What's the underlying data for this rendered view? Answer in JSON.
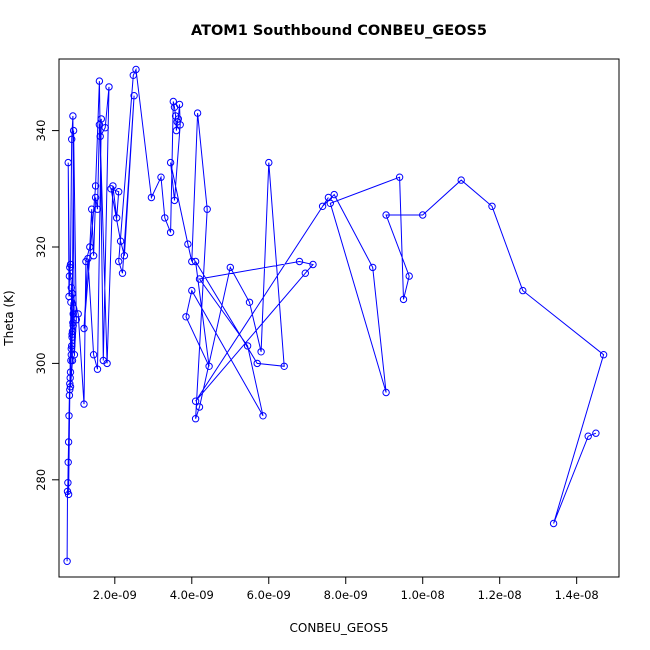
{
  "chart_data": {
    "type": "line",
    "title": "ATOM1 Southbound CONBEU_GEOS5",
    "xlabel": "CONBEU_GEOS5",
    "ylabel": "Theta (K)",
    "xlim": [
      5.5e-10,
      1.51e-08
    ],
    "ylim": [
      263.3,
      352.3
    ],
    "x_ticks": [
      2e-09,
      4e-09,
      6e-09,
      8e-09,
      1e-08,
      1.2e-08,
      1.4e-08
    ],
    "x_tick_labels": [
      "2.0e-09",
      "4.0e-09",
      "6.0e-09",
      "8.0e-09",
      "1.0e-08",
      "1.2e-08",
      "1.4e-08"
    ],
    "y_ticks": [
      280,
      300,
      320,
      340
    ],
    "y_tick_labels": [
      "280",
      "300",
      "320",
      "340"
    ],
    "grid": false,
    "legend": "none",
    "marker": "open-circle",
    "series": [
      {
        "color": "#0000ff",
        "x": [
          7.6e-10,
          7.7e-10,
          7.8e-10,
          7.9e-10,
          8e-10,
          8.1e-10,
          8.2e-10,
          8.3e-10,
          8.4e-10,
          8.5e-10,
          8.6e-10,
          8.7e-10,
          8.8e-10,
          8.9e-10,
          9e-10,
          9.1e-10,
          9.2e-10,
          9.3e-10,
          8.3e-10,
          8.1e-10,
          7.9e-10,
          8.2e-10,
          8.5e-10,
          8.8e-10,
          9.1e-10,
          9.5e-10,
          1e-09,
          9.3e-10,
          8.9e-10,
          8.6e-10,
          8e-10,
          8.3e-10,
          8.7e-10,
          9.2e-10,
          8.7e-10,
          9e-10,
          8.5e-10,
          9e-10,
          1.05e-09,
          1.2e-09,
          1.25e-09,
          1.35e-09,
          1.4e-09,
          1.45e-09,
          1.5e-09,
          1.55e-09,
          1.6e-09,
          1.65e-09,
          1.55e-09,
          1.45e-09,
          1.3e-09,
          1.2e-09,
          1.5e-09,
          1.6e-09,
          1.7e-09,
          1.85e-09,
          1.75e-09,
          1.62e-09,
          1.8e-09,
          1.95e-09,
          2.05e-09,
          2.1e-09,
          1.9e-09,
          2.15e-09,
          2.25e-09,
          2.5e-09,
          2.2e-09,
          2.1e-09,
          2.48e-09,
          2.55e-09,
          2.95e-09,
          3.2e-09,
          3.3e-09,
          3.45e-09,
          3.52e-09,
          3.55e-09,
          3.58e-09,
          3.6e-09,
          3.62e-09,
          3.65e-09,
          3.68e-09,
          3.7e-09,
          3.55e-09,
          3.45e-09,
          3.9e-09,
          4e-09,
          4.15e-09,
          4.4e-09,
          4.1e-09,
          4.2e-09,
          5e-09,
          5.5e-09,
          5.8e-09,
          6e-09,
          6.4e-09,
          5.7e-09,
          4.1e-09,
          4.45e-09,
          3.85e-09,
          4e-09,
          5.85e-09,
          5.45e-09,
          4.2e-09,
          6.8e-09,
          7.15e-09,
          6.95e-09,
          4.1e-09,
          7.55e-09,
          7.4e-09,
          7.7e-09,
          8.7e-09,
          9.05e-09,
          7.6e-09,
          9.4e-09,
          9.5e-09,
          9.65e-09,
          9.05e-09,
          1e-08,
          1.1e-08,
          1.18e-08,
          1.26e-08,
          1.47e-08,
          1.34e-08,
          1.43e-08,
          1.45e-08
        ],
        "y": [
          266.0,
          278.0,
          279.5,
          283.0,
          286.5,
          291.0,
          294.5,
          296.5,
          297.5,
          298.5,
          300.5,
          301.5,
          303.0,
          304.5,
          305.5,
          307.0,
          308.5,
          309.5,
          316.5,
          311.5,
          334.5,
          315.0,
          317.0,
          338.5,
          342.5,
          301.5,
          307.5,
          340.0,
          305.0,
          310.5,
          277.5,
          295.5,
          302.5,
          306.5,
          313.0,
          300.5,
          296.0,
          312.0,
          308.5,
          293.0,
          317.5,
          320.0,
          326.5,
          318.5,
          328.5,
          326.5,
          341.0,
          342.0,
          299.0,
          301.5,
          318.0,
          306.0,
          330.5,
          348.5,
          300.5,
          347.5,
          340.5,
          339.0,
          300.0,
          330.5,
          325.0,
          329.5,
          330.0,
          321.0,
          318.5,
          346.0,
          315.5,
          317.5,
          349.5,
          350.5,
          328.5,
          332.0,
          325.0,
          322.5,
          345.0,
          344.0,
          342.5,
          340.0,
          341.5,
          342.0,
          344.5,
          341.0,
          328.0,
          334.5,
          320.5,
          317.5,
          343.0,
          326.5,
          290.5,
          292.5,
          316.5,
          310.5,
          302.0,
          334.5,
          299.5,
          300.0,
          317.5,
          299.5,
          308.0,
          312.5,
          291.0,
          303.0,
          314.5,
          317.5,
          317.0,
          315.5,
          293.5,
          328.5,
          327.0,
          329.0,
          316.5,
          295.0,
          327.5,
          332.0,
          311.0,
          315.0,
          325.5,
          325.5,
          331.5,
          327.0,
          312.5,
          301.5,
          272.5,
          287.5,
          288.0
        ]
      }
    ]
  }
}
